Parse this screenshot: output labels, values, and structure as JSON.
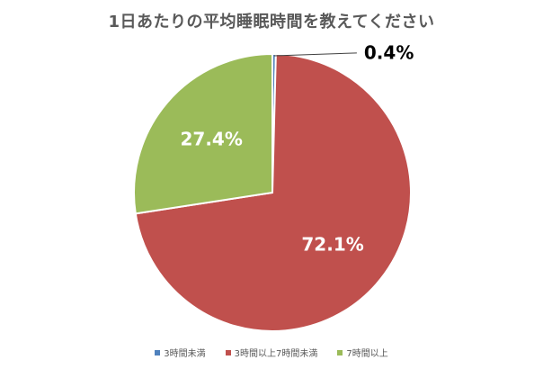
{
  "chart_data": {
    "type": "pie",
    "title": "1日あたりの平均睡眠時間を教えてください",
    "categories": [
      "3時間未満",
      "3時間以上7時間未満",
      "7時間以上"
    ],
    "values": [
      0.4,
      72.1,
      27.4
    ],
    "labels": [
      "0.4%",
      "72.1%",
      "27.4%"
    ],
    "colors": [
      "#4f81bd",
      "#c0504d",
      "#9bbb59"
    ],
    "legend": "bottom"
  }
}
